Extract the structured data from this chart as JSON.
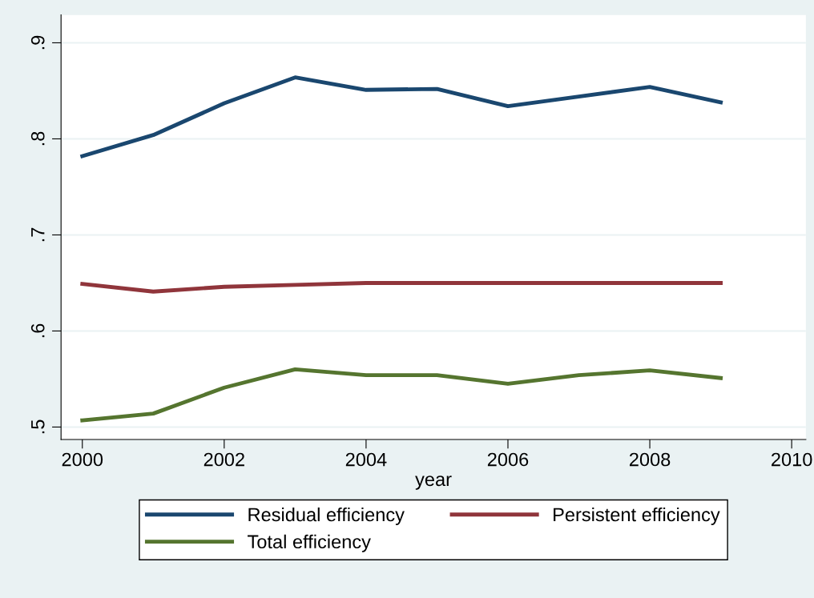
{
  "chart_data": {
    "type": "line",
    "xlabel": "year",
    "x": [
      2000,
      2001,
      2002,
      2003,
      2004,
      2005,
      2006,
      2007,
      2008,
      2009
    ],
    "series": [
      {
        "name": "Residual efficiency",
        "color": "#1a476f",
        "values": [
          0.782,
          0.804,
          0.837,
          0.864,
          0.851,
          0.852,
          0.834,
          0.844,
          0.854,
          0.838
        ]
      },
      {
        "name": "Persistent efficiency",
        "color": "#90353b",
        "values": [
          0.649,
          0.641,
          0.646,
          0.648,
          0.65,
          0.65,
          0.65,
          0.65,
          0.65,
          0.65
        ]
      },
      {
        "name": "Total efficiency",
        "color": "#55752f",
        "values": [
          0.507,
          0.514,
          0.541,
          0.56,
          0.554,
          0.554,
          0.545,
          0.554,
          0.559,
          0.551
        ]
      }
    ],
    "xlim": [
      1999.7,
      2010.2
    ],
    "xticks": [
      2000,
      2002,
      2004,
      2006,
      2008,
      2010
    ],
    "ylim": [
      0.487,
      0.929
    ],
    "yticks": [
      {
        "value": 0.5,
        "label": ".5"
      },
      {
        "value": 0.6,
        "label": ".6"
      },
      {
        "value": 0.7,
        "label": ".7"
      },
      {
        "value": 0.8,
        "label": ".8"
      },
      {
        "value": 0.9,
        "label": ".9"
      }
    ],
    "grid": "y",
    "legend": "bottom",
    "marker": "none",
    "line_style": "solid"
  }
}
